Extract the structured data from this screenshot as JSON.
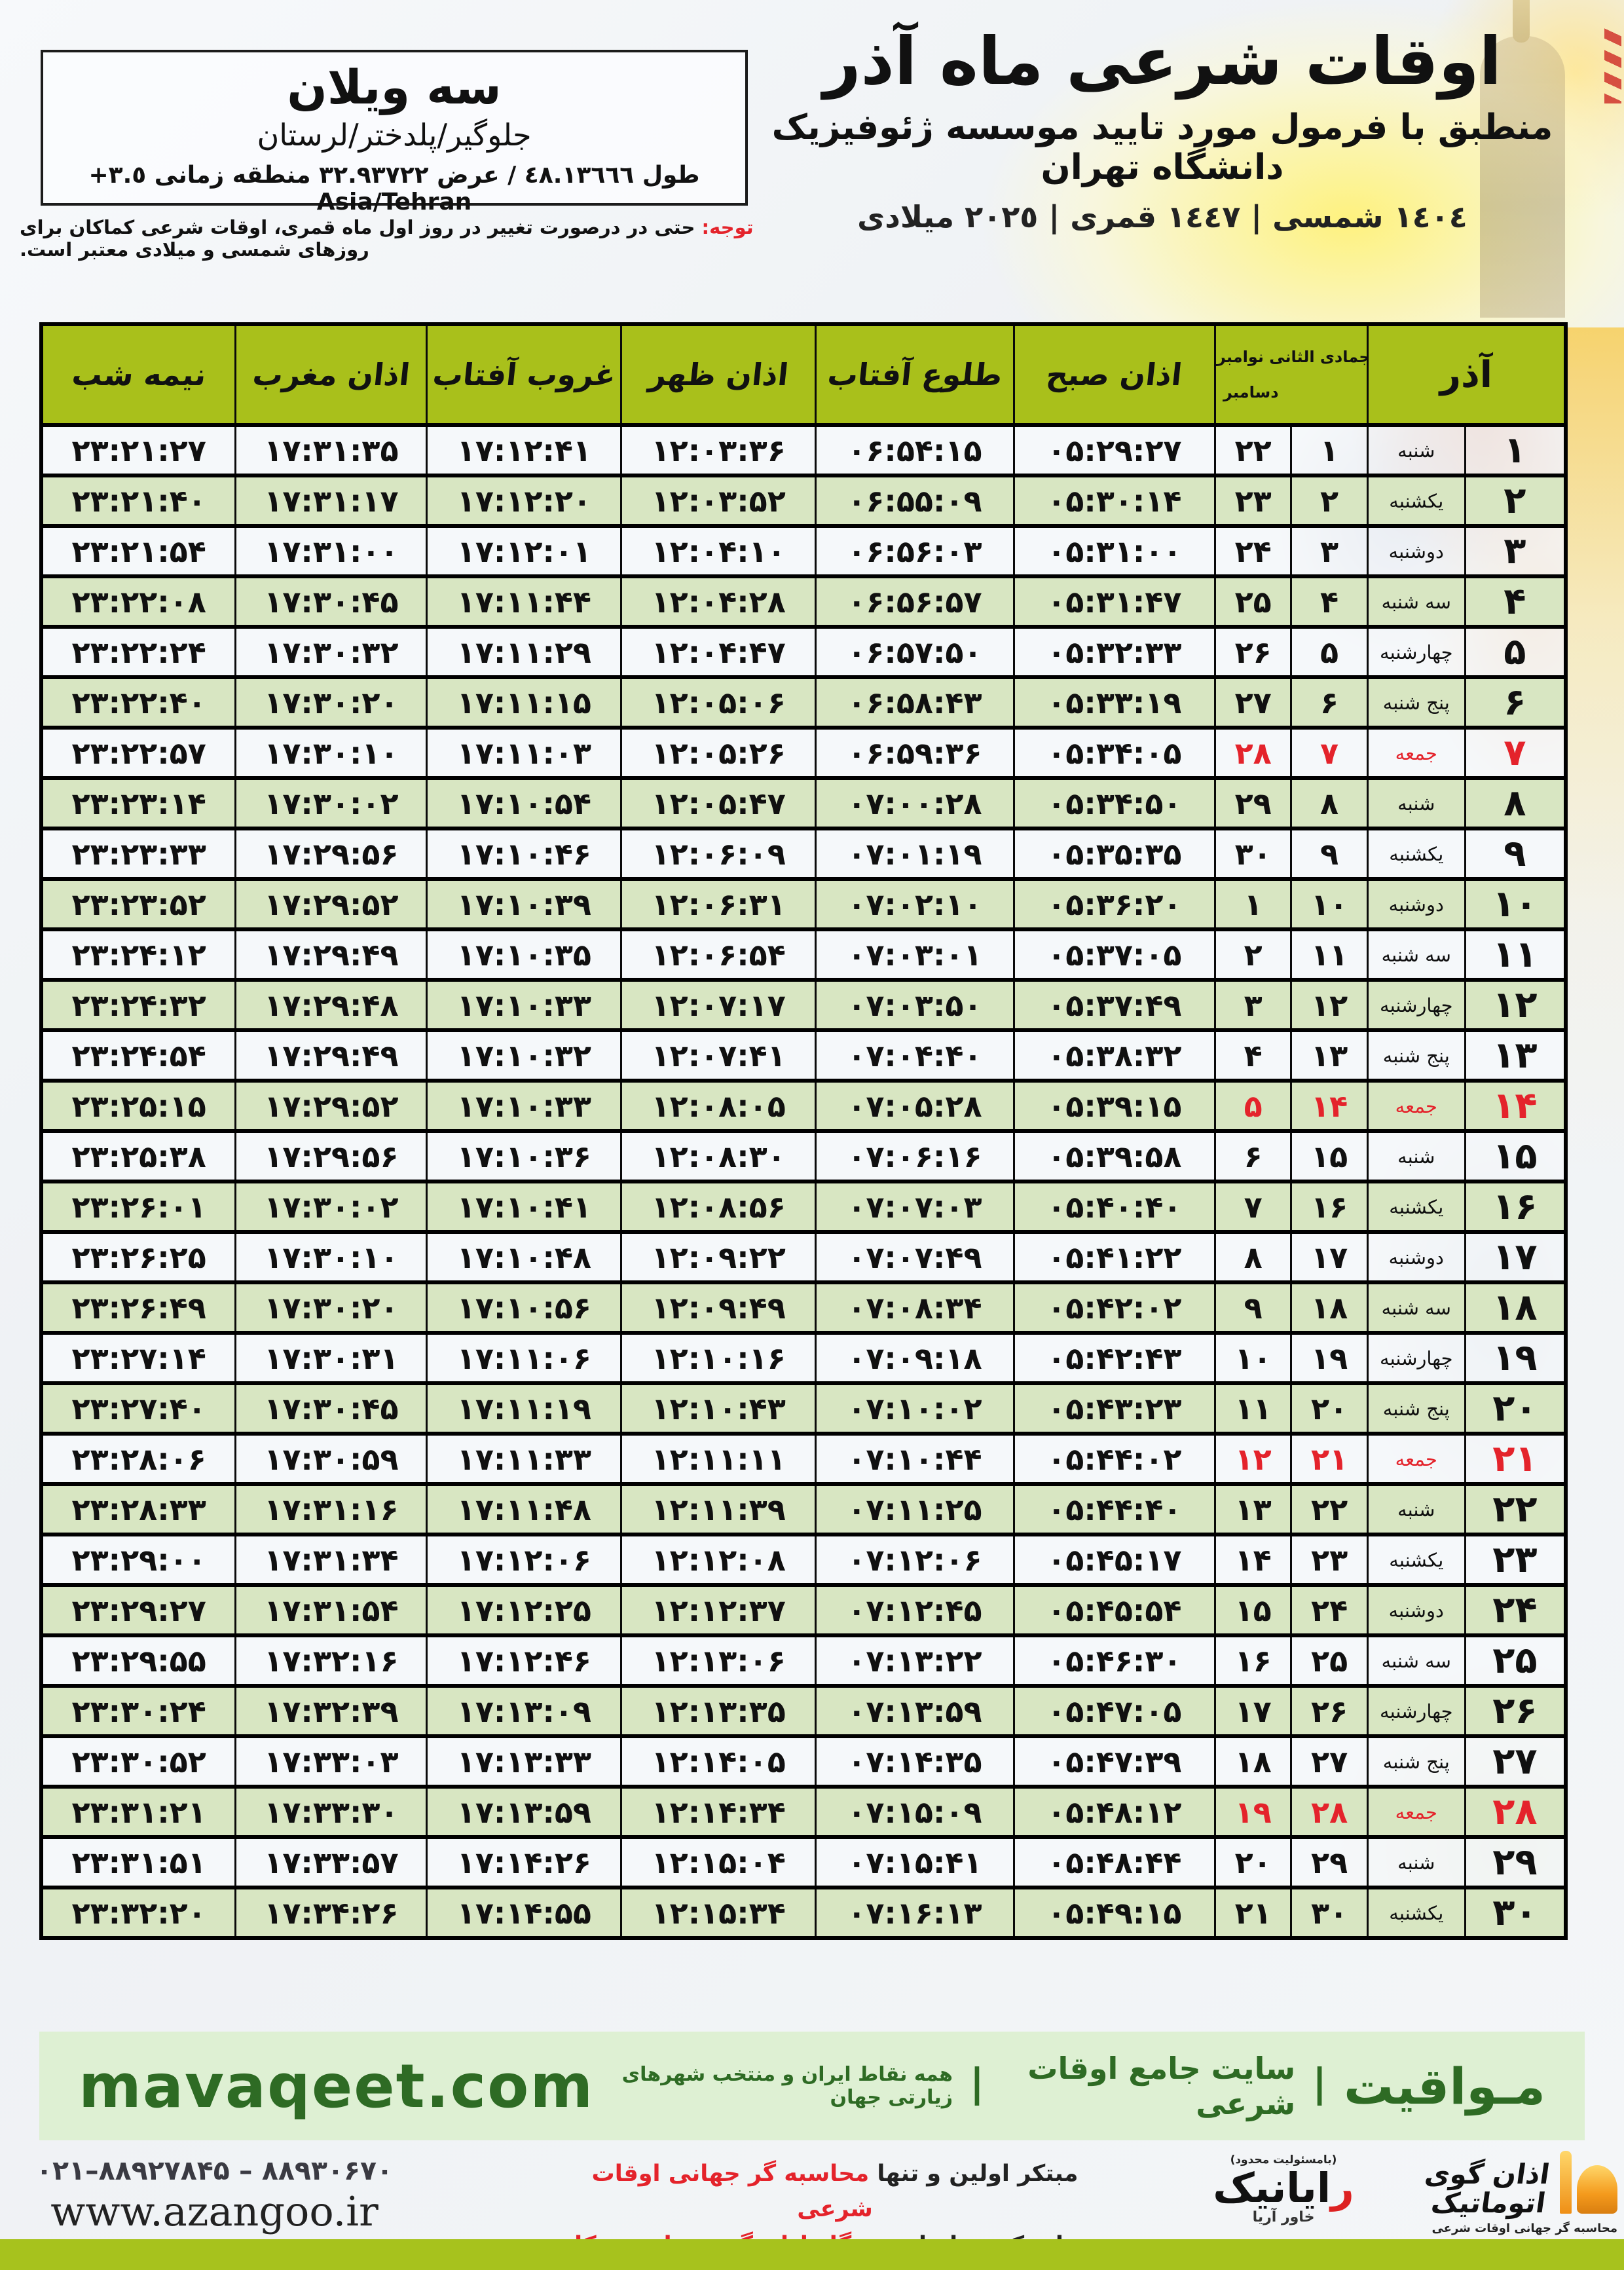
{
  "header": {
    "title": "اوقات شرعی ماه آذر",
    "subtitle": "منطبق با فرمول مورد تایید موسسه ژئوفیزیک دانشگاه تهران",
    "era_line": "١٤٠٤ شمسی | ١٤٤٧ قمری | ٢٠٢٥ میلادی"
  },
  "location_box": {
    "name": "سه ویلان",
    "region": "جلوگیر/پلدختر/لرستان",
    "coords": "طول ٤٨.١٣٦٦٦ / عرض ٣٢.٩٣٧٢٢ منطقه زمانی ‪+٣.٥‬ Asia/Tehran"
  },
  "notice": {
    "label": "توجه:",
    "text": " حتی در درصورت تغییر در روز اول ماه قمری، اوقات شرعی کماکان برای روزهای شمسی و میلادی معتبر است."
  },
  "table": {
    "headers": {
      "midnight": "نیمه شب",
      "maghrib": "اذان مغرب",
      "sunset": "غروب آفتاب",
      "dhuhr": "اذان ظهر",
      "sunrise": "طلوع آفتاب",
      "fajr": "اذان صبح",
      "cal_line1": "جمادی الثانی نوامبر",
      "cal_line2": "دسامبر",
      "month": "آذر"
    },
    "rows": [
      {
        "azar": "۱",
        "weekday": "شنبه",
        "hijri": "۱",
        "greg": "۲۲",
        "fajr": "۰۵:۲۹:۲۷",
        "sunrise": "۰۶:۵۴:۱۵",
        "dhuhr": "۱۲:۰۳:۳۶",
        "sunset": "۱۷:۱۲:۴۱",
        "maghrib": "۱۷:۳۱:۳۵",
        "midnight": "۲۳:۲۱:۲۷",
        "holiday": false
      },
      {
        "azar": "۲",
        "weekday": "یکشنبه",
        "hijri": "۲",
        "greg": "۲۳",
        "fajr": "۰۵:۳۰:۱۴",
        "sunrise": "۰۶:۵۵:۰۹",
        "dhuhr": "۱۲:۰۳:۵۲",
        "sunset": "۱۷:۱۲:۲۰",
        "maghrib": "۱۷:۳۱:۱۷",
        "midnight": "۲۳:۲۱:۴۰",
        "holiday": false
      },
      {
        "azar": "۳",
        "weekday": "دوشنبه",
        "hijri": "۳",
        "greg": "۲۴",
        "fajr": "۰۵:۳۱:۰۰",
        "sunrise": "۰۶:۵۶:۰۳",
        "dhuhr": "۱۲:۰۴:۱۰",
        "sunset": "۱۷:۱۲:۰۱",
        "maghrib": "۱۷:۳۱:۰۰",
        "midnight": "۲۳:۲۱:۵۴",
        "holiday": false
      },
      {
        "azar": "۴",
        "weekday": "سه شنبه",
        "hijri": "۴",
        "greg": "۲۵",
        "fajr": "۰۵:۳۱:۴۷",
        "sunrise": "۰۶:۵۶:۵۷",
        "dhuhr": "۱۲:۰۴:۲۸",
        "sunset": "۱۷:۱۱:۴۴",
        "maghrib": "۱۷:۳۰:۴۵",
        "midnight": "۲۳:۲۲:۰۸",
        "holiday": false
      },
      {
        "azar": "۵",
        "weekday": "چهارشنبه",
        "hijri": "۵",
        "greg": "۲۶",
        "fajr": "۰۵:۳۲:۳۳",
        "sunrise": "۰۶:۵۷:۵۰",
        "dhuhr": "۱۲:۰۴:۴۷",
        "sunset": "۱۷:۱۱:۲۹",
        "maghrib": "۱۷:۳۰:۳۲",
        "midnight": "۲۳:۲۲:۲۴",
        "holiday": false
      },
      {
        "azar": "۶",
        "weekday": "پنج شنبه",
        "hijri": "۶",
        "greg": "۲۷",
        "fajr": "۰۵:۳۳:۱۹",
        "sunrise": "۰۶:۵۸:۴۳",
        "dhuhr": "۱۲:۰۵:۰۶",
        "sunset": "۱۷:۱۱:۱۵",
        "maghrib": "۱۷:۳۰:۲۰",
        "midnight": "۲۳:۲۲:۴۰",
        "holiday": false
      },
      {
        "azar": "۷",
        "weekday": "جمعه",
        "hijri": "۷",
        "greg": "۲۸",
        "fajr": "۰۵:۳۴:۰۵",
        "sunrise": "۰۶:۵۹:۳۶",
        "dhuhr": "۱۲:۰۵:۲۶",
        "sunset": "۱۷:۱۱:۰۳",
        "maghrib": "۱۷:۳۰:۱۰",
        "midnight": "۲۳:۲۲:۵۷",
        "holiday": true
      },
      {
        "azar": "۸",
        "weekday": "شنبه",
        "hijri": "۸",
        "greg": "۲۹",
        "fajr": "۰۵:۳۴:۵۰",
        "sunrise": "۰۷:۰۰:۲۸",
        "dhuhr": "۱۲:۰۵:۴۷",
        "sunset": "۱۷:۱۰:۵۴",
        "maghrib": "۱۷:۳۰:۰۲",
        "midnight": "۲۳:۲۳:۱۴",
        "holiday": false
      },
      {
        "azar": "۹",
        "weekday": "یکشنبه",
        "hijri": "۹",
        "greg": "۳۰",
        "fajr": "۰۵:۳۵:۳۵",
        "sunrise": "۰۷:۰۱:۱۹",
        "dhuhr": "۱۲:۰۶:۰۹",
        "sunset": "۱۷:۱۰:۴۶",
        "maghrib": "۱۷:۲۹:۵۶",
        "midnight": "۲۳:۲۳:۳۳",
        "holiday": false
      },
      {
        "azar": "۱۰",
        "weekday": "دوشنبه",
        "hijri": "۱۰",
        "greg": "۱",
        "fajr": "۰۵:۳۶:۲۰",
        "sunrise": "۰۷:۰۲:۱۰",
        "dhuhr": "۱۲:۰۶:۳۱",
        "sunset": "۱۷:۱۰:۳۹",
        "maghrib": "۱۷:۲۹:۵۲",
        "midnight": "۲۳:۲۳:۵۲",
        "holiday": false
      },
      {
        "azar": "۱۱",
        "weekday": "سه شنبه",
        "hijri": "۱۱",
        "greg": "۲",
        "fajr": "۰۵:۳۷:۰۵",
        "sunrise": "۰۷:۰۳:۰۱",
        "dhuhr": "۱۲:۰۶:۵۴",
        "sunset": "۱۷:۱۰:۳۵",
        "maghrib": "۱۷:۲۹:۴۹",
        "midnight": "۲۳:۲۴:۱۲",
        "holiday": false
      },
      {
        "azar": "۱۲",
        "weekday": "چهارشنبه",
        "hijri": "۱۲",
        "greg": "۳",
        "fajr": "۰۵:۳۷:۴۹",
        "sunrise": "۰۷:۰۳:۵۰",
        "dhuhr": "۱۲:۰۷:۱۷",
        "sunset": "۱۷:۱۰:۳۳",
        "maghrib": "۱۷:۲۹:۴۸",
        "midnight": "۲۳:۲۴:۳۲",
        "holiday": false
      },
      {
        "azar": "۱۳",
        "weekday": "پنج شنبه",
        "hijri": "۱۳",
        "greg": "۴",
        "fajr": "۰۵:۳۸:۳۲",
        "sunrise": "۰۷:۰۴:۴۰",
        "dhuhr": "۱۲:۰۷:۴۱",
        "sunset": "۱۷:۱۰:۳۲",
        "maghrib": "۱۷:۲۹:۴۹",
        "midnight": "۲۳:۲۴:۵۴",
        "holiday": false
      },
      {
        "azar": "۱۴",
        "weekday": "جمعه",
        "hijri": "۱۴",
        "greg": "۵",
        "fajr": "۰۵:۳۹:۱۵",
        "sunrise": "۰۷:۰۵:۲۸",
        "dhuhr": "۱۲:۰۸:۰۵",
        "sunset": "۱۷:۱۰:۳۳",
        "maghrib": "۱۷:۲۹:۵۲",
        "midnight": "۲۳:۲۵:۱۵",
        "holiday": true
      },
      {
        "azar": "۱۵",
        "weekday": "شنبه",
        "hijri": "۱۵",
        "greg": "۶",
        "fajr": "۰۵:۳۹:۵۸",
        "sunrise": "۰۷:۰۶:۱۶",
        "dhuhr": "۱۲:۰۸:۳۰",
        "sunset": "۱۷:۱۰:۳۶",
        "maghrib": "۱۷:۲۹:۵۶",
        "midnight": "۲۳:۲۵:۳۸",
        "holiday": false
      },
      {
        "azar": "۱۶",
        "weekday": "یکشنبه",
        "hijri": "۱۶",
        "greg": "۷",
        "fajr": "۰۵:۴۰:۴۰",
        "sunrise": "۰۷:۰۷:۰۳",
        "dhuhr": "۱۲:۰۸:۵۶",
        "sunset": "۱۷:۱۰:۴۱",
        "maghrib": "۱۷:۳۰:۰۲",
        "midnight": "۲۳:۲۶:۰۱",
        "holiday": false
      },
      {
        "azar": "۱۷",
        "weekday": "دوشنبه",
        "hijri": "۱۷",
        "greg": "۸",
        "fajr": "۰۵:۴۱:۲۲",
        "sunrise": "۰۷:۰۷:۴۹",
        "dhuhr": "۱۲:۰۹:۲۲",
        "sunset": "۱۷:۱۰:۴۸",
        "maghrib": "۱۷:۳۰:۱۰",
        "midnight": "۲۳:۲۶:۲۵",
        "holiday": false
      },
      {
        "azar": "۱۸",
        "weekday": "سه شنبه",
        "hijri": "۱۸",
        "greg": "۹",
        "fajr": "۰۵:۴۲:۰۲",
        "sunrise": "۰۷:۰۸:۳۴",
        "dhuhr": "۱۲:۰۹:۴۹",
        "sunset": "۱۷:۱۰:۵۶",
        "maghrib": "۱۷:۳۰:۲۰",
        "midnight": "۲۳:۲۶:۴۹",
        "holiday": false
      },
      {
        "azar": "۱۹",
        "weekday": "چهارشنبه",
        "hijri": "۱۹",
        "greg": "۱۰",
        "fajr": "۰۵:۴۲:۴۳",
        "sunrise": "۰۷:۰۹:۱۸",
        "dhuhr": "۱۲:۱۰:۱۶",
        "sunset": "۱۷:۱۱:۰۶",
        "maghrib": "۱۷:۳۰:۳۱",
        "midnight": "۲۳:۲۷:۱۴",
        "holiday": false
      },
      {
        "azar": "۲۰",
        "weekday": "پنج شنبه",
        "hijri": "۲۰",
        "greg": "۱۱",
        "fajr": "۰۵:۴۳:۲۳",
        "sunrise": "۰۷:۱۰:۰۲",
        "dhuhr": "۱۲:۱۰:۴۳",
        "sunset": "۱۷:۱۱:۱۹",
        "maghrib": "۱۷:۳۰:۴۵",
        "midnight": "۲۳:۲۷:۴۰",
        "holiday": false
      },
      {
        "azar": "۲۱",
        "weekday": "جمعه",
        "hijri": "۲۱",
        "greg": "۱۲",
        "fajr": "۰۵:۴۴:۰۲",
        "sunrise": "۰۷:۱۰:۴۴",
        "dhuhr": "۱۲:۱۱:۱۱",
        "sunset": "۱۷:۱۱:۳۳",
        "maghrib": "۱۷:۳۰:۵۹",
        "midnight": "۲۳:۲۸:۰۶",
        "holiday": true
      },
      {
        "azar": "۲۲",
        "weekday": "شنبه",
        "hijri": "۲۲",
        "greg": "۱۳",
        "fajr": "۰۵:۴۴:۴۰",
        "sunrise": "۰۷:۱۱:۲۵",
        "dhuhr": "۱۲:۱۱:۳۹",
        "sunset": "۱۷:۱۱:۴۸",
        "maghrib": "۱۷:۳۱:۱۶",
        "midnight": "۲۳:۲۸:۳۳",
        "holiday": false
      },
      {
        "azar": "۲۳",
        "weekday": "یکشنبه",
        "hijri": "۲۳",
        "greg": "۱۴",
        "fajr": "۰۵:۴۵:۱۷",
        "sunrise": "۰۷:۱۲:۰۶",
        "dhuhr": "۱۲:۱۲:۰۸",
        "sunset": "۱۷:۱۲:۰۶",
        "maghrib": "۱۷:۳۱:۳۴",
        "midnight": "۲۳:۲۹:۰۰",
        "holiday": false
      },
      {
        "azar": "۲۴",
        "weekday": "دوشنبه",
        "hijri": "۲۴",
        "greg": "۱۵",
        "fajr": "۰۵:۴۵:۵۴",
        "sunrise": "۰۷:۱۲:۴۵",
        "dhuhr": "۱۲:۱۲:۳۷",
        "sunset": "۱۷:۱۲:۲۵",
        "maghrib": "۱۷:۳۱:۵۴",
        "midnight": "۲۳:۲۹:۲۷",
        "holiday": false
      },
      {
        "azar": "۲۵",
        "weekday": "سه شنبه",
        "hijri": "۲۵",
        "greg": "۱۶",
        "fajr": "۰۵:۴۶:۳۰",
        "sunrise": "۰۷:۱۳:۲۲",
        "dhuhr": "۱۲:۱۳:۰۶",
        "sunset": "۱۷:۱۲:۴۶",
        "maghrib": "۱۷:۳۲:۱۶",
        "midnight": "۲۳:۲۹:۵۵",
        "holiday": false
      },
      {
        "azar": "۲۶",
        "weekday": "چهارشنبه",
        "hijri": "۲۶",
        "greg": "۱۷",
        "fajr": "۰۵:۴۷:۰۵",
        "sunrise": "۰۷:۱۳:۵۹",
        "dhuhr": "۱۲:۱۳:۳۵",
        "sunset": "۱۷:۱۳:۰۹",
        "maghrib": "۱۷:۳۲:۳۹",
        "midnight": "۲۳:۳۰:۲۴",
        "holiday": false
      },
      {
        "azar": "۲۷",
        "weekday": "پنج شنبه",
        "hijri": "۲۷",
        "greg": "۱۸",
        "fajr": "۰۵:۴۷:۳۹",
        "sunrise": "۰۷:۱۴:۳۵",
        "dhuhr": "۱۲:۱۴:۰۵",
        "sunset": "۱۷:۱۳:۳۳",
        "maghrib": "۱۷:۳۳:۰۳",
        "midnight": "۲۳:۳۰:۵۲",
        "holiday": false
      },
      {
        "azar": "۲۸",
        "weekday": "جمعه",
        "hijri": "۲۸",
        "greg": "۱۹",
        "fajr": "۰۵:۴۸:۱۲",
        "sunrise": "۰۷:۱۵:۰۹",
        "dhuhr": "۱۲:۱۴:۳۴",
        "sunset": "۱۷:۱۳:۵۹",
        "maghrib": "۱۷:۳۳:۳۰",
        "midnight": "۲۳:۳۱:۲۱",
        "holiday": true
      },
      {
        "azar": "۲۹",
        "weekday": "شنبه",
        "hijri": "۲۹",
        "greg": "۲۰",
        "fajr": "۰۵:۴۸:۴۴",
        "sunrise": "۰۷:۱۵:۴۱",
        "dhuhr": "۱۲:۱۵:۰۴",
        "sunset": "۱۷:۱۴:۲۶",
        "maghrib": "۱۷:۳۳:۵۷",
        "midnight": "۲۳:۳۱:۵۱",
        "holiday": false
      },
      {
        "azar": "۳۰",
        "weekday": "یکشنبه",
        "hijri": "۳۰",
        "greg": "۲۱",
        "fajr": "۰۵:۴۹:۱۵",
        "sunrise": "۰۷:۱۶:۱۳",
        "dhuhr": "۱۲:۱۵:۳۴",
        "sunset": "۱۷:۱۴:۵۵",
        "maghrib": "۱۷:۳۴:۲۶",
        "midnight": "۲۳:۳۲:۲۰",
        "holiday": false
      }
    ]
  },
  "mavaqeet_band": {
    "brand": "مـواقیت",
    "separator": "|",
    "tagline": "سایت جامع اوقات شرعی",
    "subtitle": "همه نقاط ایران و منتخب شهرهای زیارتی جهان",
    "domain": "mavaqeet.com"
  },
  "footer": {
    "phones": "۰۲۱–۸۸۹۲۷۸۴۵ – ۸۸۹۳۰۶۷۰",
    "website": "www.azangoo.ir",
    "promo_line1_black": "مبتکر اولین و تنها ",
    "promo_line1_red": "محاسبه گر جهانی اوقات شرعی",
    "promo_line2_black": "و تولید کننده انواع ",
    "promo_line2_red": "دستگاه اذان گوی تمام خودکار ماهواره ای",
    "rayanik_note": "(بامسئولیت محدود)",
    "rayanik_initial": "ر",
    "rayanik_rest": "ایانیک",
    "rayanik_sub": "خاور آریا",
    "azangoo_title": "اذان گوی اتوماتیک",
    "azangoo_sub": "محاسبه گر جهانی اوقات شرعی",
    "azangoo_latin_a": "a",
    "azangoo_latin_rest": "zangoo"
  },
  "colors": {
    "header_green": "#a9c01b",
    "row_green": "#d8e6c2",
    "row_light": "#f3f6f9",
    "accent_red": "#e4232b",
    "band_bg": "#def0d3",
    "band_text": "#2e6b24",
    "bottom_bar": "#a7c21d"
  }
}
